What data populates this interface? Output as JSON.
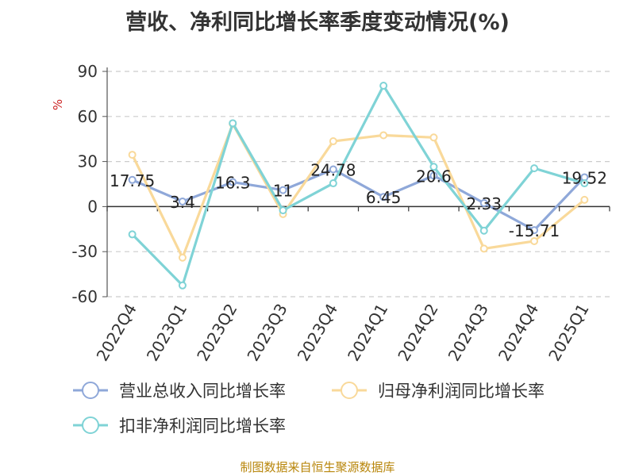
{
  "chart_data": {
    "type": "line",
    "title": "营收、净利同比增长率季度变动情况(%)",
    "ylabel": "%",
    "xlabel": "",
    "categories": [
      "2022Q4",
      "2023Q1",
      "2023Q2",
      "2023Q3",
      "2023Q4",
      "2024Q1",
      "2024Q2",
      "2024Q3",
      "2024Q4",
      "2025Q1"
    ],
    "ylim": [
      -60,
      90
    ],
    "yticks": [
      90,
      60,
      30,
      0,
      -30,
      -60
    ],
    "grid": true,
    "legend_position": "bottom",
    "series": [
      {
        "name": "营业总收入同比增长率",
        "color": "#8fa8d9",
        "values": [
          17.75,
          3.4,
          16.3,
          11,
          24.78,
          6.45,
          20.6,
          2.33,
          -15.71,
          19.52
        ],
        "labels": [
          "17.75",
          "3.4",
          "16.3",
          "11",
          "24.78",
          "6.45",
          "20.6",
          "2.33",
          "-15.71",
          "19.52"
        ]
      },
      {
        "name": "归母净利润同比增长率",
        "color": "#f9d99a",
        "values": [
          34.5,
          -34.0,
          55.0,
          -5.0,
          43.5,
          47.5,
          46.0,
          -28.0,
          -23.0,
          4.5
        ]
      },
      {
        "name": "扣非净利润同比增长率",
        "color": "#7fd3d6",
        "values": [
          -18.5,
          -52.5,
          55.5,
          -2.5,
          15.5,
          80.5,
          26.5,
          -16.0,
          25.5,
          15.5
        ]
      }
    ],
    "source": "制图数据来自恒生聚源数据库"
  }
}
